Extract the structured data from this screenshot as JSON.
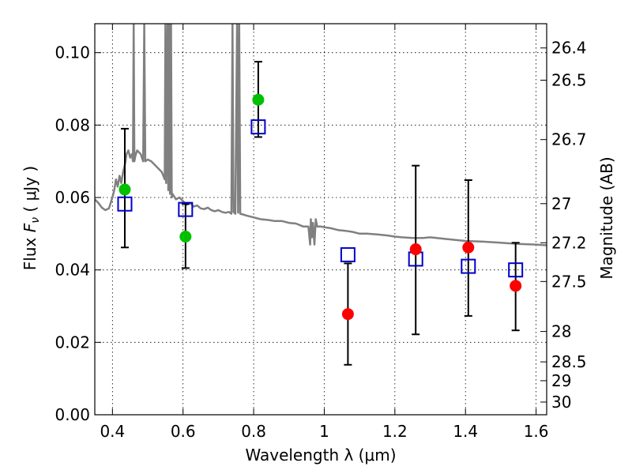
{
  "chart_data": {
    "type": "scatter",
    "title": "",
    "xlabel": "Wavelength  λ (μm)",
    "ylabel_prefix": "Flux ",
    "ylabel_symbol": "F",
    "ylabel_subscript": "ν",
    "ylabel_suffix": " ( μJy )",
    "y2label": "Magnitude (AB)",
    "xlim": [
      0.35,
      1.63
    ],
    "ylim": [
      0.0,
      0.108
    ],
    "grid": true,
    "x_ticks": [
      {
        "value": 0.4,
        "label": "0.4"
      },
      {
        "value": 0.6,
        "label": "0.6"
      },
      {
        "value": 0.8,
        "label": "0.8"
      },
      {
        "value": 1.0,
        "label": "1"
      },
      {
        "value": 1.2,
        "label": "1.2"
      },
      {
        "value": 1.4,
        "label": "1.4"
      },
      {
        "value": 1.6,
        "label": "1.6"
      }
    ],
    "y_ticks": [
      {
        "value": 0.0,
        "label": "0.00"
      },
      {
        "value": 0.02,
        "label": "0.02"
      },
      {
        "value": 0.04,
        "label": "0.04"
      },
      {
        "value": 0.06,
        "label": "0.06"
      },
      {
        "value": 0.08,
        "label": "0.08"
      },
      {
        "value": 0.1,
        "label": "0.10"
      }
    ],
    "mag_ticks": [
      {
        "flux": 0.1013,
        "label": "26.4"
      },
      {
        "flux": 0.0924,
        "label": "26.5"
      },
      {
        "flux": 0.076,
        "label": "26.7"
      },
      {
        "flux": 0.0583,
        "label": "27"
      },
      {
        "flux": 0.0475,
        "label": "27.2"
      },
      {
        "flux": 0.0368,
        "label": "27.5"
      },
      {
        "flux": 0.023,
        "label": "28"
      },
      {
        "flux": 0.0146,
        "label": "28.5"
      },
      {
        "flux": 0.0094,
        "label": "29"
      },
      {
        "flux": 0.0035,
        "label": "30"
      }
    ],
    "series": [
      {
        "name": "template SED",
        "kind": "line",
        "color": "#808080",
        "x": [
          0.35,
          0.36,
          0.37,
          0.38,
          0.39,
          0.4,
          0.405,
          0.41,
          0.415,
          0.42,
          0.425,
          0.43,
          0.435,
          0.437,
          0.44,
          0.445,
          0.45,
          0.455,
          0.458,
          0.46,
          0.462,
          0.465,
          0.47,
          0.48,
          0.487,
          0.49,
          0.493,
          0.5,
          0.51,
          0.52,
          0.53,
          0.54,
          0.548,
          0.55,
          0.552,
          0.556,
          0.558,
          0.561,
          0.563,
          0.566,
          0.568,
          0.57,
          0.58,
          0.59,
          0.6,
          0.61,
          0.62,
          0.63,
          0.64,
          0.65,
          0.66,
          0.67,
          0.68,
          0.69,
          0.7,
          0.71,
          0.72,
          0.73,
          0.737,
          0.74,
          0.743,
          0.748,
          0.753,
          0.756,
          0.759,
          0.762,
          0.77,
          0.78,
          0.8,
          0.82,
          0.84,
          0.86,
          0.88,
          0.9,
          0.92,
          0.94,
          0.955,
          0.96,
          0.962,
          0.965,
          0.968,
          0.972,
          0.976,
          0.98,
          0.99,
          1.0,
          1.02,
          1.04,
          1.06,
          1.08,
          1.1,
          1.12,
          1.15,
          1.18,
          1.2,
          1.22,
          1.25,
          1.28,
          1.3,
          1.35,
          1.4,
          1.45,
          1.5,
          1.55,
          1.6,
          1.63
        ],
        "y": [
          0.0595,
          0.0585,
          0.0572,
          0.0565,
          0.057,
          0.06,
          0.062,
          0.065,
          0.063,
          0.066,
          0.064,
          0.067,
          0.069,
          0.07,
          0.072,
          0.073,
          0.071,
          0.072,
          0.07,
          0.108,
          0.07,
          0.0715,
          0.073,
          0.072,
          0.07,
          0.108,
          0.07,
          0.0705,
          0.07,
          0.069,
          0.068,
          0.067,
          0.065,
          0.108,
          0.064,
          0.108,
          0.062,
          0.108,
          0.061,
          0.108,
          0.06,
          0.061,
          0.0595,
          0.06,
          0.059,
          0.058,
          0.0585,
          0.0575,
          0.0578,
          0.057,
          0.0568,
          0.0572,
          0.0565,
          0.0562,
          0.0565,
          0.056,
          0.0558,
          0.056,
          0.0555,
          0.108,
          0.056,
          0.0555,
          0.108,
          0.0558,
          0.108,
          0.0555,
          0.0553,
          0.055,
          0.0545,
          0.054,
          0.0538,
          0.0535,
          0.0535,
          0.053,
          0.0528,
          0.052,
          0.052,
          0.047,
          0.054,
          0.049,
          0.053,
          0.047,
          0.054,
          0.052,
          0.052,
          0.0518,
          0.0515,
          0.051,
          0.0508,
          0.0505,
          0.05,
          0.05,
          0.0498,
          0.0495,
          0.0492,
          0.049,
          0.0488,
          0.0488,
          0.049,
          0.0485,
          0.048,
          0.0478,
          0.0475,
          0.0472,
          0.047,
          0.0468
        ]
      },
      {
        "name": "blue squares",
        "kind": "square",
        "color": "#0000cc",
        "x": [
          0.435,
          0.607,
          0.813,
          1.067,
          1.259,
          1.408,
          1.542
        ],
        "y": [
          0.0582,
          0.0567,
          0.0795,
          0.0442,
          0.043,
          0.041,
          0.04
        ]
      },
      {
        "name": "green points",
        "kind": "point",
        "color": "#00c000",
        "x": [
          0.435,
          0.607,
          0.813
        ],
        "y": [
          0.0622,
          0.0492,
          0.087
        ]
      },
      {
        "name": "red points",
        "kind": "point",
        "color": "#ff0000",
        "x": [
          1.067,
          1.259,
          1.408,
          1.542
        ],
        "y": [
          0.0278,
          0.0457,
          0.0462,
          0.0356
        ]
      }
    ],
    "errorbars": [
      {
        "x": 0.435,
        "low": 0.0462,
        "high": 0.079
      },
      {
        "x": 0.607,
        "low": 0.0405,
        "high": 0.0582
      },
      {
        "x": 0.813,
        "low": 0.0767,
        "high": 0.0975
      },
      {
        "x": 1.067,
        "low": 0.0138,
        "high": 0.0418
      },
      {
        "x": 1.259,
        "low": 0.0222,
        "high": 0.0688
      },
      {
        "x": 1.408,
        "low": 0.0273,
        "high": 0.0648
      },
      {
        "x": 1.542,
        "low": 0.0233,
        "high": 0.0475
      }
    ]
  }
}
